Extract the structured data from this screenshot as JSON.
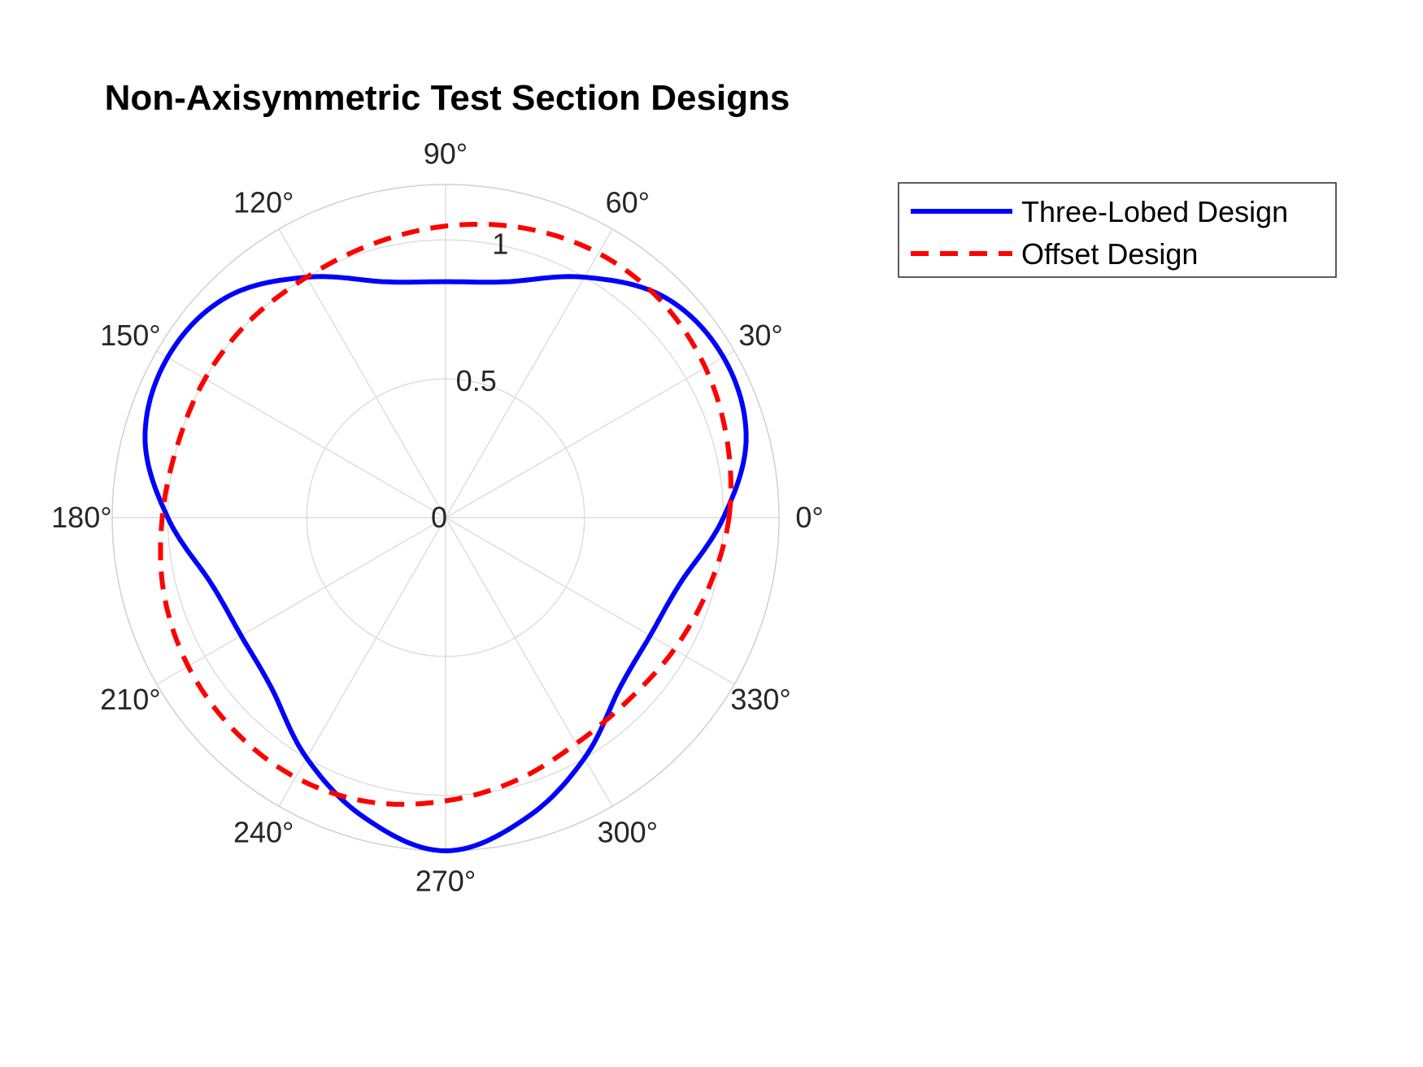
{
  "chart_data": {
    "type": "line",
    "coordinate_system": "polar",
    "title": "Non-Axisymmetric Test Section Designs",
    "theta_unit": "degrees",
    "theta_ticks": [
      0,
      30,
      60,
      90,
      120,
      150,
      180,
      210,
      240,
      270,
      300,
      330
    ],
    "theta_tick_labels": [
      "0°",
      "30°",
      "60°",
      "90°",
      "120°",
      "150°",
      "180°",
      "210°",
      "240°",
      "270°",
      "300°",
      "330°"
    ],
    "rlim": [
      0,
      1.2
    ],
    "r_ticks": [
      0,
      0.5,
      1
    ],
    "r_tick_labels": [
      "0",
      "0.5",
      "1"
    ],
    "grid": true,
    "legend_position": "outside-right",
    "series": [
      {
        "name": "Three-Lobed Design",
        "color": "#0000ff",
        "line_style": "solid",
        "theta": [
          0,
          15,
          30,
          45,
          60,
          75,
          90,
          105,
          120,
          135,
          150,
          165,
          180,
          195,
          210,
          225,
          240,
          255,
          270,
          285,
          300,
          315,
          330,
          345,
          360
        ],
        "r": [
          1.0,
          1.12,
          1.155,
          1.12,
          1.0,
          0.88,
          0.85,
          0.88,
          1.0,
          1.12,
          1.155,
          1.12,
          1.0,
          0.88,
          0.85,
          0.88,
          1.0,
          1.12,
          1.2,
          1.12,
          1.0,
          0.88,
          0.85,
          0.88,
          1.0
        ]
      },
      {
        "name": "Offset Design",
        "color": "#ff0000",
        "line_style": "dashed",
        "theta": [
          0,
          15,
          30,
          45,
          60,
          75,
          90,
          105,
          120,
          135,
          150,
          165,
          180,
          195,
          210,
          225,
          240,
          255,
          270,
          285,
          300,
          315,
          330,
          345,
          360
        ],
        "r": [
          1.02,
          1.05,
          1.08,
          1.1,
          1.1,
          1.08,
          1.05,
          1.02,
          1.0,
          1.0,
          1.0,
          1.0,
          1.02,
          1.05,
          1.07,
          1.08,
          1.08,
          1.06,
          1.02,
          0.98,
          0.94,
          0.93,
          0.95,
          0.98,
          1.02
        ]
      }
    ]
  }
}
